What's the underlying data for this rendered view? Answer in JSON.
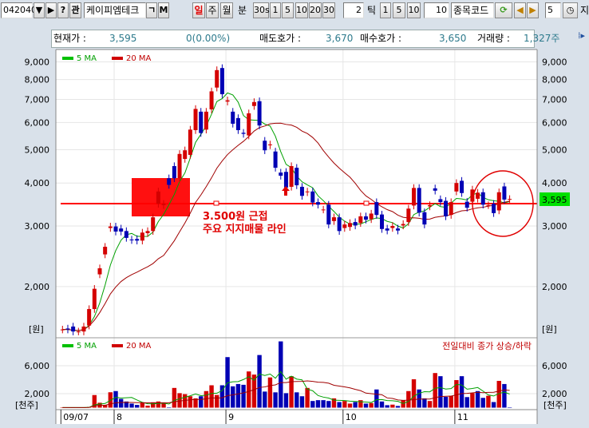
{
  "toolbar": {
    "code": "042040",
    "dropdown_icon": "▼",
    "next_icon": "▶",
    "help_label": "?",
    "watch_label": "관",
    "name": "케이피엠테크",
    "initial_label": "ㄱ",
    "m_label": "M",
    "period_day": "일",
    "period_week": "주",
    "period_month": "월",
    "minute_label": "분",
    "minute_options": [
      "30s",
      "1",
      "5",
      "10",
      "20",
      "30"
    ],
    "minute_custom": "2",
    "tick_label": "틱",
    "tick_options": [
      "1",
      "5",
      "10"
    ],
    "tick_custom": "10",
    "code_search_placeholder": "종목코드",
    "refresh_icon": "refresh-icon",
    "prev_icon": "◀",
    "next2_icon": "▶",
    "count_value": "5",
    "clock_icon": "clock-icon",
    "trailing_label": "지"
  },
  "info": {
    "current_label": "현재가 :",
    "current_value": "3,595",
    "change": "0(0.00%)",
    "ask_label": "매도호가 :",
    "ask_value": "3,670",
    "bid_label": "매수호가 :",
    "bid_value": "3,650",
    "volume_label": "거래량 :",
    "volume_value": "1,327주"
  },
  "colors": {
    "up": "#d40000",
    "down": "#0000b4",
    "ma5": "#00a000",
    "ma20": "#a00000",
    "support": "#ff0000",
    "price_tag": "#00e000"
  },
  "chart_data": [
    {
      "type": "candlestick",
      "scale": "log",
      "yticks": [
        "9,000",
        "8,000",
        "7,000",
        "6,000",
        "5,000",
        "4,000",
        "3,000",
        "2,000"
      ],
      "ytick_values": [
        9000,
        8000,
        7000,
        6000,
        5000,
        4000,
        3000,
        2000
      ],
      "y_unit": "[원]",
      "legend": [
        "5 MA",
        "20 MA"
      ],
      "grid": true,
      "current_price": 3595,
      "current_price_label": "3,595",
      "open": [
        1500,
        1510,
        1530,
        1480,
        1480,
        1540,
        1720,
        2170,
        2480,
        2960,
        2990,
        2950,
        2900,
        2740,
        2750,
        2720,
        2860,
        2900,
        3480,
        3450,
        4130,
        4480,
        4130,
        4700,
        4830,
        5700,
        6450,
        5720,
        6550,
        7580,
        8640,
        6900,
        6450,
        6180,
        5600,
        5500,
        6700,
        6920,
        5310,
        5150,
        4940,
        4290,
        4310,
        3900,
        4430,
        3900,
        3760,
        3780,
        3520,
        3350,
        3460,
        3100,
        3180,
        2960,
        2980,
        3080,
        3060,
        3200,
        3140,
        3520,
        3240,
        2950,
        2960,
        2950,
        3010,
        3080,
        3440,
        3870,
        3290,
        3420,
        3860,
        3590,
        3550,
        3230,
        3780,
        4060,
        3530,
        3530,
        3600,
        3760,
        3450,
        3480,
        3330,
        3910,
        3595
      ],
      "close": [
        1500,
        1500,
        1480,
        1480,
        1530,
        1720,
        1970,
        2260,
        2610,
        2990,
        2890,
        2890,
        2770,
        2730,
        2720,
        2870,
        2900,
        3180,
        3780,
        3480,
        3950,
        4130,
        4860,
        4980,
        5720,
        6570,
        5590,
        6450,
        7390,
        8520,
        7250,
        6960,
        5950,
        5700,
        5560,
        6380,
        6880,
        5880,
        4980,
        5180,
        4430,
        4200,
        3880,
        4480,
        3940,
        3670,
        3780,
        3510,
        3460,
        3350,
        3030,
        3180,
        2900,
        3030,
        3060,
        3010,
        3200,
        3130,
        3260,
        3230,
        2940,
        2910,
        3000,
        2910,
        3040,
        3370,
        3870,
        3280,
        3030,
        3450,
        3800,
        3520,
        3200,
        3520,
        4000,
        3740,
        3390,
        3830,
        3750,
        3460,
        3450,
        3270,
        3760,
        3580,
        3595
      ],
      "annotation": [
        "3.500원 근접",
        "주요 지지매물 라인"
      ],
      "support_level": 3500
    },
    {
      "type": "bar",
      "yticks": [
        "6,000",
        "2,000"
      ],
      "ytick_values": [
        6000,
        2000
      ],
      "y_unit": "[천주]",
      "legend": [
        "5 MA",
        "20 MA"
      ],
      "note": "전일대비 종가 상승/하락",
      "values": [
        20,
        20,
        20,
        20,
        20,
        100,
        1800,
        700,
        350,
        2200,
        2370,
        1250,
        880,
        580,
        390,
        690,
        280,
        770,
        880,
        580,
        50,
        2820,
        2070,
        1930,
        1630,
        1330,
        1630,
        2370,
        3200,
        1810,
        3200,
        7230,
        3050,
        3380,
        3270,
        5180,
        4730,
        7530,
        2300,
        4320,
        2190,
        9480,
        2070,
        4500,
        2190,
        1630,
        2820,
        950,
        1070,
        1070,
        950,
        1330,
        800,
        950,
        580,
        800,
        1070,
        580,
        650,
        2600,
        880,
        350,
        430,
        240,
        1070,
        2370,
        4060,
        2600,
        1330,
        950,
        4950,
        4500,
        1550,
        1700,
        3940,
        4500,
        1510,
        2070,
        2370,
        1400,
        1700,
        800,
        3830,
        3380,
        20
      ],
      "up": [
        1,
        0,
        0,
        0,
        1,
        1,
        1,
        1,
        1,
        1,
        0,
        0,
        0,
        0,
        0,
        1,
        1,
        1,
        1,
        1,
        0,
        1,
        1,
        1,
        1,
        1,
        0,
        1,
        1,
        1,
        0,
        0,
        0,
        0,
        0,
        1,
        1,
        0,
        0,
        1,
        0,
        0,
        0,
        1,
        0,
        0,
        1,
        0,
        0,
        0,
        0,
        1,
        0,
        1,
        1,
        0,
        1,
        0,
        1,
        0,
        0,
        0,
        1,
        0,
        1,
        1,
        1,
        0,
        0,
        1,
        1,
        0,
        0,
        1,
        1,
        0,
        0,
        1,
        0,
        0,
        1,
        0,
        1,
        0,
        0
      ]
    }
  ],
  "xaxis": {
    "labels": [
      "09/07",
      "8",
      "9",
      "10",
      "11"
    ]
  }
}
